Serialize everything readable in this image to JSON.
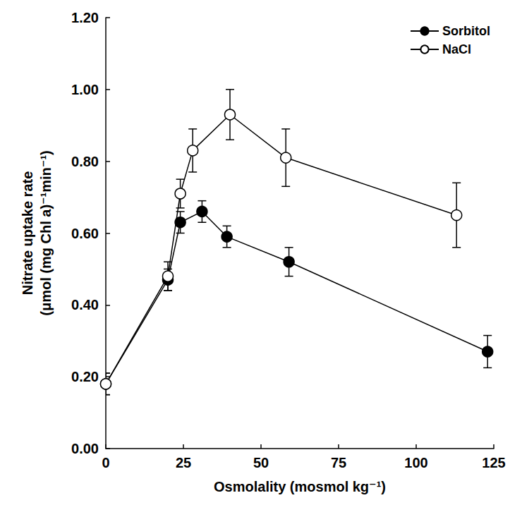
{
  "chart_data": {
    "type": "line",
    "x_label": "Osmolality (mosmol kg⁻¹)",
    "y_label": "Nitrate uptake rate\n(μmol (mg Chl a)⁻¹min⁻¹)",
    "xlim": [
      0,
      125
    ],
    "xticks": [
      0,
      25,
      50,
      75,
      100,
      125
    ],
    "ylim": [
      0,
      1.2
    ],
    "yticks": [
      {
        "value": 0,
        "label": "0.00"
      },
      {
        "value": 0.2,
        "label": "0.20"
      },
      {
        "value": 0.4,
        "label": "0.40"
      },
      {
        "value": 0.6,
        "label": "0.60"
      },
      {
        "value": 0.8,
        "label": "0.80"
      },
      {
        "value": 1.0,
        "label": "1.00"
      },
      {
        "value": 1.2,
        "label": "1.20"
      }
    ],
    "grid": false,
    "legend": "upper right",
    "series": [
      {
        "name": "Sorbitol",
        "color": "#000000",
        "marker": "filled_circle",
        "line_style": "solid",
        "x": [
          0,
          20,
          24,
          31,
          39,
          59,
          123
        ],
        "values": [
          0.18,
          0.47,
          0.63,
          0.66,
          0.59,
          0.52,
          0.27
        ],
        "errors": [
          0.03,
          0.03,
          0.03,
          0.03,
          0.03,
          0.04,
          0.045
        ]
      },
      {
        "name": "NaCl",
        "color": "#000000",
        "marker": "open_circle",
        "line_style": "solid",
        "x": [
          0,
          20,
          24,
          28,
          40,
          58,
          113
        ],
        "values": [
          0.18,
          0.48,
          0.71,
          0.83,
          0.93,
          0.81,
          0.65
        ],
        "errors": [
          0.03,
          0.04,
          0.04,
          0.06,
          0.07,
          0.08,
          0.09
        ]
      }
    ]
  }
}
